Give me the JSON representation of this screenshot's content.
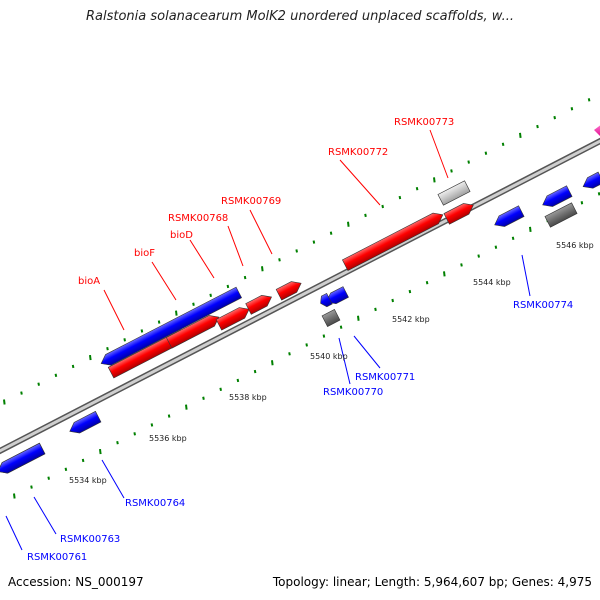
{
  "title": "Ralstonia solanacearum MolK2 unordered unplaced scaffolds, w...",
  "footer": {
    "accession": "Accession: NS_000197",
    "topology": "Topology: linear; Length: 5,964,607 bp; Genes: 4,975"
  },
  "colors": {
    "forward_gene": "#ff0000",
    "reverse_gene": "#0000ff",
    "other_gene": "#808080",
    "pseudo_gene": "#c0c0c0",
    "misc_feature": "#ff00a0",
    "tick": "#008000",
    "backbone": "#9a9a9a"
  },
  "genes": [
    {
      "id": "RSMK00761",
      "strand": "reverse",
      "label": "RSMK00761"
    },
    {
      "id": "RSMK00763",
      "strand": "reverse",
      "label": "RSMK00763"
    },
    {
      "id": "RSMK00764",
      "strand": "reverse",
      "label": "RSMK00764"
    },
    {
      "id": "bioA",
      "strand": "forward",
      "label": "bioA"
    },
    {
      "id": "bioF",
      "strand": "forward",
      "label": "bioF"
    },
    {
      "id": "bioD",
      "strand": "forward",
      "label": "bioD"
    },
    {
      "id": "RSMK00768",
      "strand": "forward",
      "label": "RSMK00768"
    },
    {
      "id": "RSMK00769",
      "strand": "forward",
      "label": "RSMK00769"
    },
    {
      "id": "RSMK00770",
      "strand": "reverse",
      "label": "RSMK00770"
    },
    {
      "id": "RSMK00771",
      "strand": "reverse",
      "label": "RSMK00771"
    },
    {
      "id": "RSMK00772",
      "strand": "forward",
      "label": "RSMK00772"
    },
    {
      "id": "RSMK00773",
      "strand": "forward",
      "label": "RSMK00773"
    },
    {
      "id": "RSMK00774",
      "strand": "reverse",
      "label": "RSMK00774"
    }
  ],
  "ruler_labels": [
    "5534 kbp",
    "5536 kbp",
    "5538 kbp",
    "5540 kbp",
    "5542 kbp",
    "5544 kbp",
    "5546 kbp"
  ]
}
